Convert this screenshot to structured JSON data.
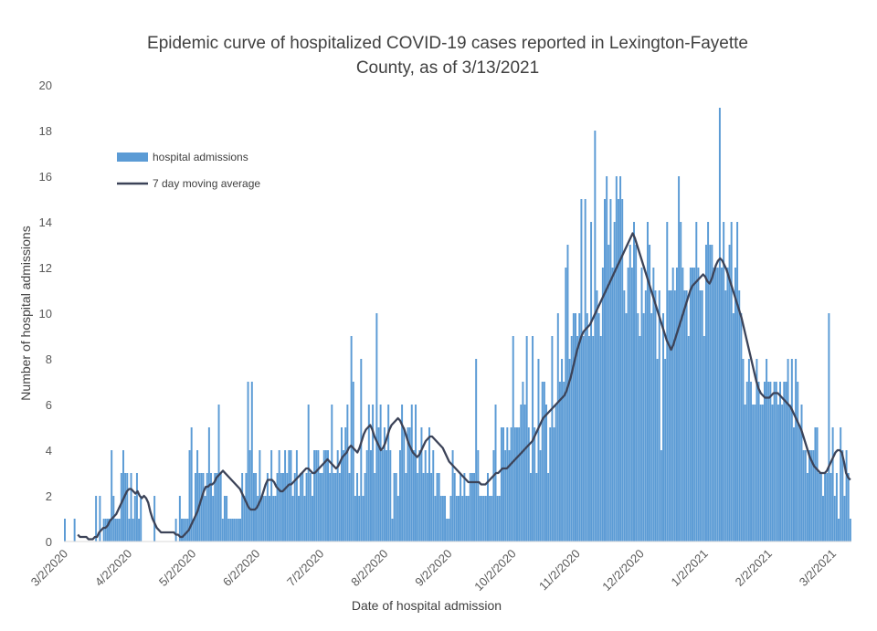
{
  "chart_data": {
    "type": "bar",
    "title": "Epidemic curve of hospitalized COVID-19 cases reported in Lexington-Fayette County, as of 3/13/2021",
    "title_lines": [
      "Epidemic curve of hospitalized COVID-19 cases reported in Lexington-Fayette",
      "County, as of 3/13/2021"
    ],
    "xlabel": "Date of hospital admission",
    "ylabel": "Number of hospital admissions",
    "ylim": [
      0,
      20
    ],
    "yticks": [
      "0",
      "2",
      "4",
      "6",
      "8",
      "10",
      "12",
      "14",
      "16",
      "18",
      "20"
    ],
    "xticks": [
      "3/2/2020",
      "4/2/2020",
      "5/2/2020",
      "6/2/2020",
      "7/2/2020",
      "8/2/2020",
      "9/2/2020",
      "10/2/2020",
      "11/2/2020",
      "12/2/2020",
      "1/2/2021",
      "2/2/2021",
      "3/2/2021"
    ],
    "start_date": "3/2/2020",
    "end_date": "3/13/2021",
    "legend_position": "top-left",
    "grid": false,
    "series": [
      {
        "name": "hospital admissions",
        "kind": "bar",
        "color": "#5b9bd5",
        "values": [
          1,
          0,
          0,
          0,
          0,
          1,
          0,
          0,
          0,
          0,
          0,
          0,
          0,
          0,
          0,
          0,
          2,
          0,
          2,
          0,
          1,
          1,
          1,
          1,
          4,
          2,
          1,
          1,
          1,
          3,
          4,
          3,
          3,
          1,
          3,
          1,
          2,
          3,
          1,
          2,
          0,
          0,
          0,
          0,
          0,
          0,
          2,
          0,
          0,
          0,
          0,
          0,
          0,
          0,
          0,
          0,
          0,
          1,
          0,
          2,
          1,
          1,
          1,
          1,
          4,
          5,
          1,
          3,
          4,
          3,
          3,
          3,
          2,
          3,
          5,
          3,
          2,
          3,
          3,
          6,
          3,
          1,
          2,
          2,
          1,
          1,
          1,
          1,
          1,
          1,
          1,
          3,
          2,
          3,
          7,
          4,
          7,
          3,
          3,
          2,
          4,
          2,
          2,
          2,
          3,
          2,
          4,
          2,
          2,
          3,
          4,
          3,
          3,
          4,
          3,
          4,
          4,
          2,
          3,
          4,
          2,
          3,
          3,
          2,
          3,
          6,
          3,
          2,
          4,
          4,
          4,
          3,
          3,
          4,
          4,
          4,
          3,
          6,
          3,
          3,
          4,
          3,
          5,
          4,
          5,
          6,
          3,
          9,
          7,
          2,
          3,
          2,
          8,
          2,
          3,
          4,
          6,
          4,
          6,
          3,
          10,
          5,
          6,
          4,
          5,
          4,
          6,
          4,
          1,
          3,
          3,
          2,
          4,
          6,
          5,
          3,
          5,
          5,
          6,
          4,
          6,
          3,
          4,
          5,
          3,
          4,
          3,
          5,
          3,
          4,
          2,
          3,
          3,
          2,
          2,
          2,
          1,
          1,
          2,
          4,
          3,
          2,
          2,
          3,
          2,
          3,
          2,
          2,
          3,
          3,
          3,
          8,
          4,
          2,
          2,
          2,
          2,
          3,
          2,
          2,
          4,
          6,
          2,
          2,
          5,
          5,
          4,
          5,
          4,
          5,
          9,
          5,
          5,
          5,
          6,
          7,
          6,
          9,
          5,
          3,
          9,
          5,
          3,
          8,
          4,
          7,
          7,
          6,
          3,
          5,
          9,
          5,
          6,
          10,
          7,
          8,
          7,
          12,
          13,
          8,
          9,
          10,
          10,
          9,
          10,
          15,
          9,
          15,
          10,
          9,
          14,
          9,
          18,
          11,
          10,
          9,
          12,
          15,
          16,
          13,
          15,
          12,
          14,
          16,
          15,
          16,
          15,
          11,
          10,
          12,
          13,
          12,
          14,
          13,
          10,
          9,
          12,
          10,
          11,
          14,
          13,
          10,
          12,
          11,
          8,
          11,
          4,
          10,
          8,
          14,
          11,
          11,
          12,
          11,
          12,
          16,
          14,
          12,
          11,
          11,
          9,
          12,
          12,
          12,
          14,
          12,
          11,
          11,
          9,
          13,
          14,
          13,
          13,
          12,
          12,
          12,
          19,
          12,
          14,
          11,
          12,
          13,
          14,
          10,
          12,
          14,
          11,
          10,
          8,
          6,
          7,
          8,
          7,
          6,
          6,
          8,
          7,
          6,
          6,
          7,
          8,
          7,
          7,
          6,
          7,
          7,
          6,
          7,
          6,
          7,
          7,
          8,
          6,
          8,
          5,
          8,
          7,
          5,
          6,
          4,
          4,
          3,
          4,
          4,
          4,
          5,
          5,
          3,
          3,
          2,
          3,
          3,
          10,
          3,
          5,
          2,
          3,
          1,
          5,
          4,
          2,
          4,
          3,
          1
        ],
        "values_note": "daily counts, 3/2/2020–3/13/2021"
      },
      {
        "name": "7 day moving average",
        "kind": "line",
        "color": "#3c4358",
        "values": [
          null,
          null,
          null,
          null,
          null,
          null,
          0.3,
          0.2,
          0.2,
          0.2,
          0.2,
          0.1,
          0.1,
          0.1,
          0.2,
          0.2,
          0.4,
          0.5,
          0.6,
          0.6,
          0.7,
          0.9,
          1.0,
          1.1,
          1.2,
          1.4,
          1.6,
          1.8,
          2.0,
          2.2,
          2.3,
          2.3,
          2.2,
          2.1,
          2.2,
          2.0,
          1.9,
          2.0,
          1.9,
          1.7,
          1.3,
          1.0,
          0.8,
          0.6,
          0.5,
          0.4,
          0.4,
          0.4,
          0.4,
          0.4,
          0.4,
          0.4,
          0.3,
          0.3,
          0.2,
          0.2,
          0.3,
          0.4,
          0.5,
          0.7,
          0.9,
          1.1,
          1.3,
          1.6,
          1.9,
          2.2,
          2.4,
          2.4,
          2.5,
          2.5,
          2.6,
          2.8,
          2.9,
          3.0,
          3.1,
          3.0,
          2.9,
          2.8,
          2.7,
          2.6,
          2.5,
          2.4,
          2.3,
          2.1,
          1.9,
          1.7,
          1.5,
          1.4,
          1.4,
          1.4,
          1.5,
          1.7,
          1.9,
          2.2,
          2.5,
          2.7,
          2.7,
          2.7,
          2.6,
          2.4,
          2.3,
          2.2,
          2.2,
          2.3,
          2.4,
          2.5,
          2.5,
          2.6,
          2.7,
          2.8,
          2.9,
          3.0,
          3.1,
          3.2,
          3.2,
          3.1,
          3.0,
          3.0,
          3.1,
          3.2,
          3.3,
          3.4,
          3.5,
          3.6,
          3.5,
          3.4,
          3.3,
          3.2,
          3.3,
          3.5,
          3.7,
          3.8,
          3.9,
          4.1,
          4.2,
          4.1,
          4.0,
          3.9,
          4.1,
          4.4,
          4.7,
          4.9,
          5.0,
          5.1,
          4.9,
          4.6,
          4.4,
          4.2,
          4.0,
          4.1,
          4.3,
          4.6,
          4.9,
          5.1,
          5.2,
          5.3,
          5.4,
          5.3,
          5.1,
          4.9,
          4.6,
          4.3,
          4.1,
          3.9,
          3.8,
          3.7,
          3.8,
          4.0,
          4.2,
          4.4,
          4.5,
          4.6,
          4.6,
          4.5,
          4.4,
          4.3,
          4.2,
          4.1,
          3.9,
          3.7,
          3.5,
          3.4,
          3.3,
          3.2,
          3.1,
          3.0,
          2.9,
          2.8,
          2.7,
          2.6,
          2.6,
          2.6,
          2.6,
          2.6,
          2.6,
          2.5,
          2.5,
          2.5,
          2.6,
          2.7,
          2.8,
          2.9,
          3.0,
          3.0,
          3.1,
          3.2,
          3.2,
          3.2,
          3.3,
          3.4,
          3.5,
          3.6,
          3.7,
          3.8,
          3.9,
          4.0,
          4.1,
          4.2,
          4.3,
          4.4,
          4.6,
          4.8,
          5.0,
          5.2,
          5.4,
          5.5,
          5.6,
          5.7,
          5.8,
          5.9,
          6.0,
          6.1,
          6.2,
          6.3,
          6.4,
          6.6,
          6.9,
          7.2,
          7.6,
          8.0,
          8.4,
          8.7,
          9.0,
          9.2,
          9.3,
          9.4,
          9.5,
          9.7,
          9.9,
          10.1,
          10.3,
          10.5,
          10.7,
          10.9,
          11.1,
          11.3,
          11.5,
          11.7,
          11.9,
          12.1,
          12.3,
          12.5,
          12.7,
          12.9,
          13.1,
          13.3,
          13.5,
          13.3,
          13.0,
          12.7,
          12.4,
          12.1,
          11.8,
          11.5,
          11.2,
          10.9,
          10.6,
          10.3,
          10.0,
          9.7,
          9.4,
          9.1,
          8.8,
          8.6,
          8.4,
          8.6,
          8.9,
          9.2,
          9.5,
          9.8,
          10.1,
          10.4,
          10.7,
          11.0,
          11.2,
          11.3,
          11.4,
          11.5,
          11.6,
          11.7,
          11.6,
          11.4,
          11.3,
          11.5,
          11.8,
          12.1,
          12.3,
          12.4,
          12.3,
          12.1,
          11.9,
          11.6,
          11.3,
          11.0,
          10.7,
          10.4,
          10.1,
          9.8,
          9.4,
          9.0,
          8.6,
          8.2,
          7.8,
          7.4,
          7.0,
          6.7,
          6.5,
          6.4,
          6.3,
          6.3,
          6.3,
          6.4,
          6.5,
          6.5,
          6.5,
          6.4,
          6.3,
          6.2,
          6.1,
          6.0,
          5.9,
          5.7,
          5.5,
          5.3,
          5.1,
          4.9,
          4.6,
          4.3,
          4.0,
          3.7,
          3.5,
          3.3,
          3.2,
          3.1,
          3.0,
          3.0,
          3.0,
          3.1,
          3.3,
          3.5,
          3.7,
          3.9,
          4.0,
          4.0,
          3.9,
          3.5,
          3.0,
          2.8,
          2.7
        ]
      }
    ]
  }
}
